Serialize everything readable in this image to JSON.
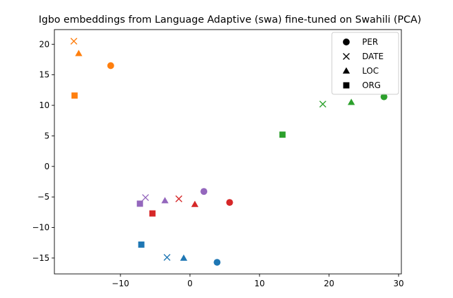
{
  "chart_data": {
    "type": "scatter",
    "title": "Igbo embeddings from Language Adaptive (swa) fine-tuned on Swahili (PCA)",
    "xlabel": "",
    "ylabel": "",
    "xlim": [
      -19.5,
      30.4
    ],
    "ylim": [
      -17.6,
      22.4
    ],
    "xticks": [
      -10,
      0,
      10,
      20,
      30
    ],
    "yticks": [
      -15,
      -10,
      -5,
      0,
      5,
      10,
      15,
      20
    ],
    "grid": false,
    "legend_position": "top-right",
    "legend": [
      {
        "label": "PER",
        "marker": "circle"
      },
      {
        "label": "DATE",
        "marker": "x"
      },
      {
        "label": "LOC",
        "marker": "triangle"
      },
      {
        "label": "ORG",
        "marker": "square"
      }
    ],
    "colors": {
      "blue": "#1f77b4",
      "orange": "#ff7f0e",
      "green": "#2ca02c",
      "red": "#d62728",
      "purple": "#9467bd"
    },
    "points": [
      {
        "x": 3.9,
        "y": -15.7,
        "marker": "circle",
        "color": "blue"
      },
      {
        "x": -3.3,
        "y": -14.9,
        "marker": "x",
        "color": "blue"
      },
      {
        "x": -0.9,
        "y": -15.0,
        "marker": "triangle",
        "color": "blue"
      },
      {
        "x": -7.0,
        "y": -12.8,
        "marker": "square",
        "color": "blue"
      },
      {
        "x": -11.4,
        "y": 16.5,
        "marker": "circle",
        "color": "orange"
      },
      {
        "x": -16.7,
        "y": 20.5,
        "marker": "x",
        "color": "orange"
      },
      {
        "x": -16.0,
        "y": 18.5,
        "marker": "triangle",
        "color": "orange"
      },
      {
        "x": -16.6,
        "y": 11.6,
        "marker": "square",
        "color": "orange"
      },
      {
        "x": 27.9,
        "y": 11.4,
        "marker": "circle",
        "color": "green"
      },
      {
        "x": 19.1,
        "y": 10.2,
        "marker": "x",
        "color": "green"
      },
      {
        "x": 23.2,
        "y": 10.5,
        "marker": "triangle",
        "color": "green"
      },
      {
        "x": 13.3,
        "y": 5.2,
        "marker": "square",
        "color": "green"
      },
      {
        "x": 5.7,
        "y": -5.9,
        "marker": "circle",
        "color": "red"
      },
      {
        "x": -1.6,
        "y": -5.3,
        "marker": "x",
        "color": "red"
      },
      {
        "x": 0.7,
        "y": -6.2,
        "marker": "triangle",
        "color": "red"
      },
      {
        "x": -5.4,
        "y": -7.7,
        "marker": "square",
        "color": "red"
      },
      {
        "x": 2.0,
        "y": -4.1,
        "marker": "circle",
        "color": "purple"
      },
      {
        "x": -6.4,
        "y": -5.1,
        "marker": "x",
        "color": "purple"
      },
      {
        "x": -3.6,
        "y": -5.6,
        "marker": "triangle",
        "color": "purple"
      },
      {
        "x": -7.2,
        "y": -6.1,
        "marker": "square",
        "color": "purple"
      }
    ]
  }
}
